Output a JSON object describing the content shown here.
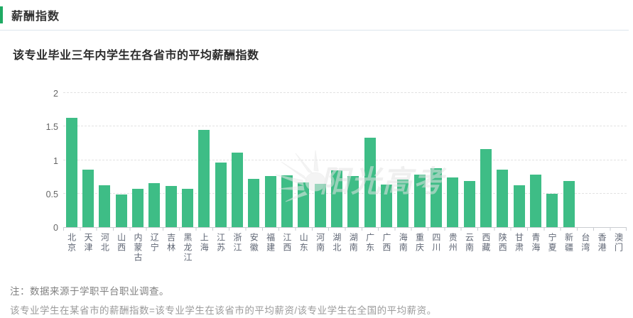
{
  "header": {
    "title": "薪酬指数"
  },
  "subtitle": "该专业毕业三年内学生在各省市的平均薪酬指数",
  "watermark": "阳光高考",
  "notes": {
    "line1": "注：数据来源于学职平台职业调查。",
    "line2": "该专业学生在某省市的薪酬指数=该专业学生在该省市的平均薪资/该专业学生在全国的平均薪资。"
  },
  "colors": {
    "bar": "#3ebd86",
    "accent": "#1faa63",
    "axis": "#c9ccd1",
    "grid": "#e2e2e2"
  },
  "chart_data": {
    "type": "bar",
    "title": "该专业毕业三年内学生在各省市的平均薪酬指数",
    "xlabel": "",
    "ylabel": "",
    "ylim": [
      0,
      2
    ],
    "yticks": [
      0,
      0.5,
      1,
      1.5,
      2
    ],
    "grid": "horizontal-dashed",
    "legend_position": "none",
    "categories": [
      "北京",
      "天津",
      "河北",
      "山西",
      "内蒙古",
      "辽宁",
      "吉林",
      "黑龙江",
      "上海",
      "江苏",
      "浙江",
      "安徽",
      "福建",
      "江西",
      "山东",
      "河南",
      "湖北",
      "湖南",
      "广东",
      "广西",
      "海南",
      "重庆",
      "四川",
      "贵州",
      "云南",
      "西藏",
      "陕西",
      "甘肃",
      "青海",
      "宁夏",
      "新疆",
      "台湾",
      "香港",
      "澳门"
    ],
    "values": [
      1.63,
      0.86,
      0.62,
      0.49,
      0.57,
      0.66,
      0.61,
      0.57,
      1.45,
      0.96,
      1.11,
      0.72,
      0.76,
      0.77,
      0.67,
      0.65,
      0.85,
      0.76,
      1.33,
      0.63,
      0.71,
      0.78,
      0.88,
      0.74,
      0.69,
      1.16,
      0.86,
      0.62,
      0.78,
      0.5,
      0.69,
      0,
      0,
      0
    ]
  }
}
